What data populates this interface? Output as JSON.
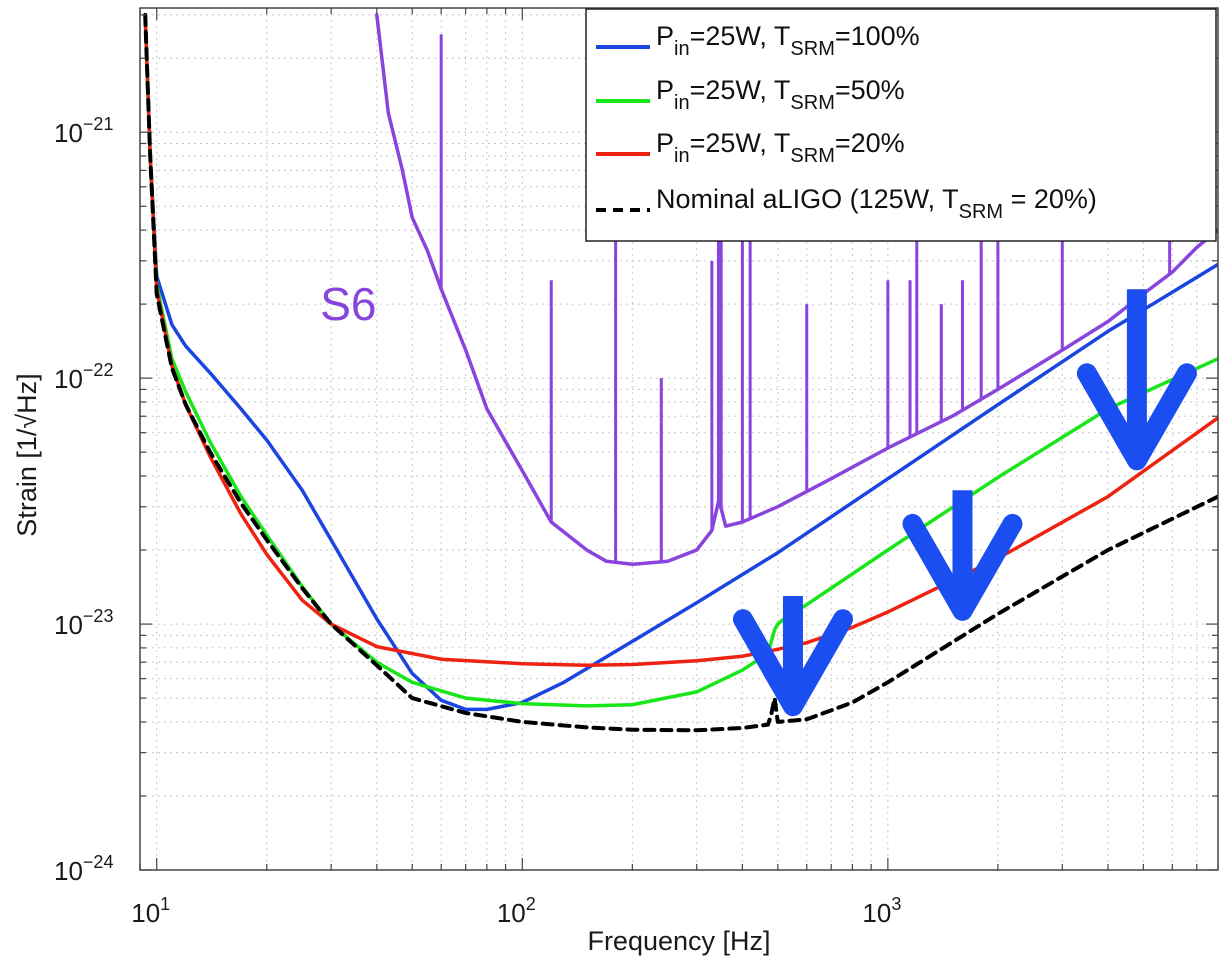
{
  "chart_data": {
    "type": "line",
    "xlabel": "Frequency [Hz]",
    "ylabel": "Strain [1/√Hz]",
    "x_scale": "log",
    "y_scale": "log",
    "xlim": [
      9,
      8000
    ],
    "ylim": [
      1e-24,
      3.2e-21
    ],
    "grid": true,
    "x_ticks": [
      {
        "value": 10,
        "base": "10",
        "exp": "1"
      },
      {
        "value": 100,
        "base": "10",
        "exp": "2"
      },
      {
        "value": 1000,
        "base": "10",
        "exp": "3"
      }
    ],
    "y_ticks": [
      {
        "value": 1e-24,
        "base": "10",
        "exp": "−24"
      },
      {
        "value": 1e-23,
        "base": "10",
        "exp": "−23"
      },
      {
        "value": 1e-22,
        "base": "10",
        "exp": "−22"
      },
      {
        "value": 1e-21,
        "base": "10",
        "exp": "−21"
      }
    ],
    "legend_position": "top-right",
    "series": [
      {
        "legend": {
          "pre": "P",
          "sub1": "in",
          "mid": "=25W, T",
          "sub2": "SRM",
          "post": "=100%"
        },
        "color": "#1a45e0",
        "dash": "solid",
        "points": [
          [
            9.3,
            3e-21
          ],
          [
            9.6,
            8e-22
          ],
          [
            10,
            2.6e-22
          ],
          [
            11,
            1.65e-22
          ],
          [
            12,
            1.35e-22
          ],
          [
            14,
            1.05e-22
          ],
          [
            17,
            7.5e-23
          ],
          [
            20,
            5.6e-23
          ],
          [
            25,
            3.5e-23
          ],
          [
            30,
            2.2e-23
          ],
          [
            40,
            1.05e-23
          ],
          [
            50,
            6.3e-24
          ],
          [
            60,
            4.9e-24
          ],
          [
            70,
            4.5e-24
          ],
          [
            80,
            4.5e-24
          ],
          [
            100,
            4.8e-24
          ],
          [
            130,
            5.8e-24
          ],
          [
            200,
            8.5e-24
          ],
          [
            300,
            1.22e-23
          ],
          [
            500,
            1.95e-23
          ],
          [
            1000,
            3.9e-23
          ],
          [
            2000,
            7.8e-23
          ],
          [
            4000,
            1.55e-22
          ],
          [
            8000,
            2.9e-22
          ]
        ]
      },
      {
        "legend": {
          "pre": "P",
          "sub1": "in",
          "mid": "=25W, T",
          "sub2": "SRM",
          "post": "=50%"
        },
        "color": "#19e619",
        "dash": "solid",
        "points": [
          [
            9.3,
            3e-21
          ],
          [
            9.6,
            8e-22
          ],
          [
            10,
            2.4e-22
          ],
          [
            11,
            1.2e-22
          ],
          [
            12,
            8.8e-23
          ],
          [
            14,
            5.5e-23
          ],
          [
            17,
            3.3e-23
          ],
          [
            20,
            2.3e-23
          ],
          [
            25,
            1.42e-23
          ],
          [
            30,
            1e-23
          ],
          [
            40,
            7e-24
          ],
          [
            50,
            5.8e-24
          ],
          [
            70,
            5e-24
          ],
          [
            100,
            4.75e-24
          ],
          [
            150,
            4.65e-24
          ],
          [
            200,
            4.7e-24
          ],
          [
            300,
            5.3e-24
          ],
          [
            400,
            6.5e-24
          ],
          [
            470,
            7.6e-24
          ],
          [
            490,
            9.5e-24
          ],
          [
            500,
            1e-23
          ],
          [
            520,
            1.05e-23
          ],
          [
            600,
            1.2e-23
          ],
          [
            1000,
            2e-23
          ],
          [
            2000,
            3.95e-23
          ],
          [
            4000,
            7.5e-23
          ],
          [
            8000,
            1.2e-22
          ]
        ]
      },
      {
        "legend": {
          "pre": "P",
          "sub1": "in",
          "mid": "=25W, T",
          "sub2": "SRM",
          "post": "=20%"
        },
        "color": "#ee2211",
        "dash": "solid",
        "points": [
          [
            9.3,
            3e-21
          ],
          [
            9.6,
            8e-22
          ],
          [
            10,
            2.3e-22
          ],
          [
            11,
            1.12e-22
          ],
          [
            12,
            7.8e-23
          ],
          [
            14,
            4.8e-23
          ],
          [
            17,
            2.8e-23
          ],
          [
            20,
            1.92e-23
          ],
          [
            25,
            1.25e-23
          ],
          [
            30,
            1e-23
          ],
          [
            40,
            8.1e-24
          ],
          [
            60,
            7.2e-24
          ],
          [
            100,
            6.9e-24
          ],
          [
            150,
            6.8e-24
          ],
          [
            200,
            6.85e-24
          ],
          [
            300,
            7.1e-24
          ],
          [
            400,
            7.4e-24
          ],
          [
            500,
            7.9e-24
          ],
          [
            600,
            8.4e-24
          ],
          [
            800,
            9.7e-24
          ],
          [
            1000,
            1.12e-23
          ],
          [
            2000,
            1.85e-23
          ],
          [
            4000,
            3.3e-23
          ],
          [
            8000,
            6.9e-23
          ]
        ]
      },
      {
        "legend": {
          "pre": "Nominal aLIGO (125W, T",
          "sub1": "",
          "mid": "",
          "sub2": "SRM",
          "post": " = 20%)"
        },
        "color": "#000000",
        "dash": "dashed",
        "points": [
          [
            9.3,
            3e-21
          ],
          [
            9.6,
            8e-22
          ],
          [
            10,
            2.2e-22
          ],
          [
            11,
            1.1e-22
          ],
          [
            12,
            7.8e-23
          ],
          [
            14,
            5e-23
          ],
          [
            17,
            3.1e-23
          ],
          [
            20,
            2.2e-23
          ],
          [
            25,
            1.4e-23
          ],
          [
            30,
            1e-23
          ],
          [
            40,
            6.8e-24
          ],
          [
            50,
            5e-24
          ],
          [
            70,
            4.35e-24
          ],
          [
            100,
            4e-24
          ],
          [
            150,
            3.8e-24
          ],
          [
            200,
            3.72e-24
          ],
          [
            300,
            3.7e-24
          ],
          [
            400,
            3.78e-24
          ],
          [
            470,
            3.9e-24
          ],
          [
            480,
            4.3e-24
          ],
          [
            490,
            5e-24
          ],
          [
            500,
            4e-24
          ],
          [
            600,
            4.1e-24
          ],
          [
            800,
            4.8e-24
          ],
          [
            1000,
            5.8e-24
          ],
          [
            2000,
            1.1e-23
          ],
          [
            4000,
            2e-23
          ],
          [
            8000,
            3.3e-23
          ]
        ]
      },
      {
        "label": "S6",
        "color": "#8844dd",
        "dash": "solid",
        "points": [
          [
            40,
            3e-21
          ],
          [
            43,
            1.2e-21
          ],
          [
            47,
            7e-22
          ],
          [
            50,
            4.5e-22
          ],
          [
            55,
            3.3e-22
          ],
          [
            60,
            2.3e-22
          ],
          [
            70,
            1.3e-22
          ],
          [
            80,
            7.5e-23
          ],
          [
            100,
            4.2e-23
          ],
          [
            120,
            2.6e-23
          ],
          [
            150,
            2e-23
          ],
          [
            170,
            1.8e-23
          ],
          [
            200,
            1.75e-23
          ],
          [
            250,
            1.8e-23
          ],
          [
            300,
            2e-23
          ],
          [
            330,
            2.4e-23
          ],
          [
            345,
            3.2e-23
          ],
          [
            360,
            2.5e-23
          ],
          [
            400,
            2.6e-23
          ],
          [
            500,
            3e-23
          ],
          [
            700,
            3.9e-23
          ],
          [
            1000,
            5.2e-23
          ],
          [
            1500,
            7e-23
          ],
          [
            2000,
            9e-23
          ],
          [
            3000,
            1.3e-22
          ],
          [
            4000,
            1.7e-22
          ],
          [
            5000,
            2.2e-22
          ],
          [
            6000,
            2.7e-22
          ],
          [
            7000,
            3.4e-22
          ],
          [
            8000,
            4e-22
          ]
        ],
        "spikes": [
          [
            60,
            2.5e-21
          ],
          [
            120,
            2.5e-22
          ],
          [
            180,
            3e-21
          ],
          [
            240,
            1e-22
          ],
          [
            330,
            3e-22
          ],
          [
            344,
            3e-21
          ],
          [
            350,
            3e-21
          ],
          [
            400,
            3e-21
          ],
          [
            420,
            3e-21
          ],
          [
            600,
            2e-22
          ],
          [
            1000,
            2.5e-22
          ],
          [
            1150,
            2.5e-22
          ],
          [
            1200,
            3e-21
          ],
          [
            1400,
            2e-22
          ],
          [
            1600,
            2.5e-22
          ],
          [
            1800,
            3e-21
          ],
          [
            2000,
            4e-22
          ],
          [
            3000,
            3e-21
          ],
          [
            5900,
            3e-21
          ],
          [
            7400,
            3e-21
          ]
        ]
      }
    ],
    "annotations": [
      {
        "text": "S6",
        "x": 28,
        "y": 2e-22,
        "color": "#8844dd"
      }
    ],
    "arrows": [
      {
        "x": 550,
        "y_from": 1.3e-23,
        "y_to": 4.3e-24,
        "color": "#1a4ef0"
      },
      {
        "x": 1600,
        "y_from": 3.5e-23,
        "y_to": 1.05e-23,
        "color": "#1a4ef0"
      },
      {
        "x": 4800,
        "y_from": 2.3e-22,
        "y_to": 4.3e-23,
        "color": "#1a4ef0"
      }
    ]
  }
}
